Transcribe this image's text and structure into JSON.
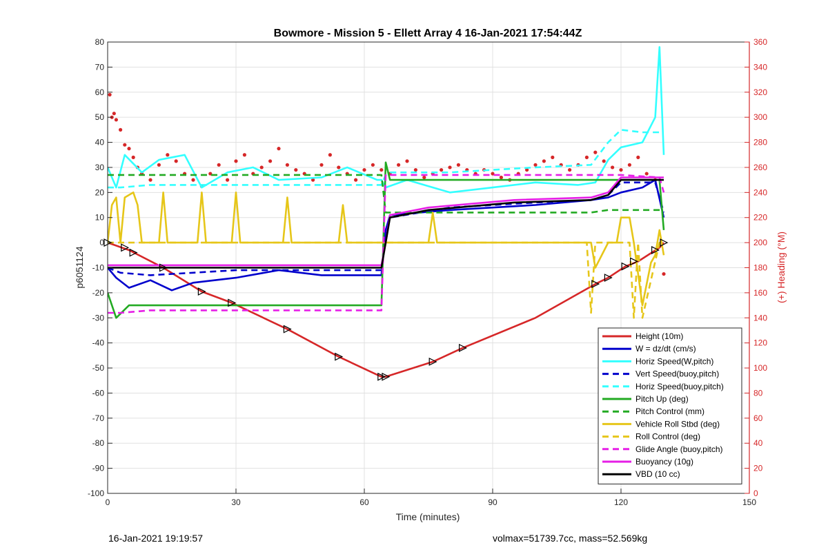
{
  "chart_data": {
    "type": "line",
    "title": "Bowmore - Mission 5 - Ellett Array 4 16-Jan-2021 17:54:44Z",
    "xlabel": "Time (minutes)",
    "ylabel": "p6051124",
    "y2label": "(+) Heading (°M)",
    "xlim": [
      0,
      150
    ],
    "ylim": [
      -100,
      80
    ],
    "y2lim": [
      0,
      360
    ],
    "xticks": [
      0,
      30,
      60,
      90,
      120,
      150
    ],
    "yticks": [
      80,
      70,
      60,
      50,
      40,
      30,
      20,
      10,
      0,
      -10,
      -20,
      -30,
      -40,
      -50,
      -60,
      -70,
      -80,
      -90,
      -100
    ],
    "y2ticks": [
      360,
      340,
      320,
      300,
      280,
      260,
      240,
      220,
      200,
      180,
      160,
      140,
      120,
      100,
      80,
      60,
      40,
      20,
      0
    ],
    "grid": true,
    "legend_position": "bottom-right",
    "series": [
      {
        "name": "Height (10m)",
        "color": "#d62728",
        "style": "solid",
        "x": [
          0,
          5,
          13,
          22,
          29,
          42,
          54,
          64,
          65,
          76,
          83,
          100,
          114,
          117,
          121,
          124,
          129,
          130
        ],
        "y": [
          0,
          -3,
          -10,
          -19.5,
          -24,
          -34.5,
          -45.5,
          -53.5,
          -53.5,
          -47.5,
          -42,
          -30,
          -16.5,
          -14,
          -9.5,
          -7.5,
          -2,
          0
        ]
      },
      {
        "name": "W = dz/dt (cm/s)",
        "color": "#0000cc",
        "style": "solid",
        "x": [
          0,
          2,
          5,
          10,
          15,
          20,
          30,
          40,
          50,
          63,
          64,
          65,
          66,
          80,
          100,
          113,
          117,
          120,
          125,
          128,
          130
        ],
        "y": [
          -10,
          -14,
          -18,
          -15,
          -19,
          -16,
          -14,
          -11,
          -13,
          -13,
          -13,
          5,
          11,
          13,
          15,
          17,
          18,
          20,
          22,
          25,
          10
        ]
      },
      {
        "name": "Horiz Speed(W,pitch)",
        "color": "#33ffff",
        "style": "solid",
        "x": [
          0,
          2,
          4,
          8,
          12,
          18,
          22,
          28,
          34,
          40,
          50,
          56,
          63,
          64,
          65,
          70,
          80,
          90,
          100,
          110,
          114,
          117,
          120,
          125,
          128,
          129,
          130
        ],
        "y": [
          30,
          22,
          35,
          28,
          33,
          35,
          22,
          28,
          30,
          25,
          26,
          30,
          25,
          25,
          22,
          25,
          20,
          22,
          24,
          23,
          24,
          33,
          38,
          40,
          50,
          78,
          35
        ]
      },
      {
        "name": "Vert Speed(buoy,pitch)",
        "color": "#0000cc",
        "style": "dashed",
        "x": [
          0,
          3,
          10,
          20,
          30,
          40,
          50,
          63,
          64,
          65,
          66,
          80,
          100,
          113,
          117,
          120,
          128,
          130
        ],
        "y": [
          -10,
          -12,
          -13,
          -12,
          -11,
          -11,
          -11,
          -11,
          -11,
          5,
          10,
          14,
          16,
          17,
          19,
          24,
          24,
          12
        ]
      },
      {
        "name": "Horiz Speed(buoy,pitch)",
        "color": "#33ffff",
        "style": "dashed",
        "x": [
          0,
          3,
          10,
          30,
          50,
          63,
          64,
          65,
          66,
          80,
          100,
          113,
          117,
          120,
          125,
          129
        ],
        "y": [
          22,
          22,
          23,
          23,
          23,
          23,
          23,
          27,
          28,
          28,
          30,
          31,
          40,
          45,
          44,
          44
        ]
      },
      {
        "name": "Pitch Up (deg)",
        "color": "#22aa22",
        "style": "solid",
        "x": [
          0,
          2,
          5,
          10,
          30,
          50,
          63,
          64,
          65,
          66,
          80,
          100,
          113,
          117,
          120,
          129,
          130
        ],
        "y": [
          -20,
          -30,
          -25,
          -25,
          -25,
          -25,
          -25,
          -25,
          32,
          25,
          25,
          25,
          25,
          25,
          25,
          25,
          5
        ]
      },
      {
        "name": "Pitch Control (mm)",
        "color": "#22aa22",
        "style": "dashed",
        "x": [
          0,
          64,
          65,
          66,
          80,
          100,
          113,
          117,
          120,
          130
        ],
        "y": [
          27,
          27,
          12,
          12,
          12,
          12,
          12,
          13,
          13,
          13
        ]
      },
      {
        "name": "Vehicle Roll Stbd (deg)",
        "color": "#e6c619",
        "style": "solid",
        "x": [
          0,
          1,
          2,
          3,
          4,
          6,
          7,
          8,
          12,
          13,
          14,
          21,
          22,
          23,
          29,
          30,
          31,
          41,
          42,
          43,
          54,
          55,
          56,
          64,
          65,
          75,
          76,
          77,
          90,
          113,
          114,
          117,
          119,
          120,
          122,
          123,
          125,
          127,
          128,
          129,
          130
        ],
        "y": [
          0,
          15,
          18,
          0,
          18,
          20,
          15,
          0,
          0,
          20,
          0,
          0,
          20,
          0,
          0,
          20,
          0,
          0,
          18,
          0,
          0,
          15,
          0,
          0,
          0,
          0,
          12,
          0,
          0,
          0,
          -10,
          0,
          0,
          10,
          10,
          0,
          -25,
          -8,
          -5,
          5,
          -5
        ]
      },
      {
        "name": "Roll Control (deg)",
        "color": "#e6c619",
        "style": "dashed",
        "x": [
          0,
          64,
          65,
          80,
          110,
          112,
          113,
          114,
          115,
          120,
          122,
          123,
          124,
          125,
          129,
          130
        ],
        "y": [
          0,
          0,
          0,
          0,
          0,
          0,
          -28,
          0,
          0,
          0,
          0,
          -30,
          0,
          -30,
          0,
          0
        ]
      },
      {
        "name": "Glide Angle (buoy,pitch)",
        "color": "#e61ee6",
        "style": "dashed",
        "x": [
          0,
          3,
          10,
          30,
          50,
          63,
          64,
          65,
          66,
          80,
          100,
          113,
          117,
          120,
          129,
          130
        ],
        "y": [
          -28,
          -28,
          -27,
          -27,
          -27,
          -27,
          -27,
          27,
          27,
          27,
          27,
          27,
          27,
          27,
          26,
          20
        ]
      },
      {
        "name": "Buoyancy (10g)",
        "color": "#e61ee6",
        "style": "solid",
        "x": [
          0,
          64,
          65,
          66,
          75,
          95,
          113,
          117,
          120,
          130
        ],
        "y": [
          -9,
          -9,
          0,
          11,
          14,
          17,
          18,
          20,
          26,
          26
        ]
      },
      {
        "name": "VBD (10 cc)",
        "color": "#000000",
        "style": "solid",
        "x": [
          0,
          64,
          65,
          66,
          75,
          95,
          113,
          117,
          120,
          130
        ],
        "y": [
          -10,
          -10,
          0,
          10,
          13,
          16,
          17,
          19,
          25,
          25
        ]
      }
    ],
    "heading_scatter": {
      "name": "(+) Heading (°M)",
      "color": "#d62728",
      "x": [
        0.5,
        1,
        1.5,
        2,
        3,
        4,
        5,
        6,
        7,
        8,
        10,
        12,
        14,
        16,
        18,
        20,
        22,
        24,
        26,
        28,
        30,
        32,
        34,
        36,
        38,
        40,
        42,
        44,
        46,
        48,
        50,
        52,
        54,
        56,
        58,
        60,
        62,
        64,
        66,
        68,
        70,
        72,
        74,
        76,
        78,
        80,
        82,
        84,
        86,
        88,
        90,
        92,
        94,
        96,
        98,
        100,
        102,
        104,
        106,
        108,
        110,
        112,
        114,
        116,
        118,
        120,
        122,
        124,
        126,
        128,
        130
      ],
      "y": [
        318,
        300,
        303,
        298,
        290,
        278,
        275,
        268,
        260,
        255,
        250,
        262,
        270,
        265,
        255,
        250,
        245,
        255,
        262,
        250,
        265,
        270,
        255,
        260,
        265,
        275,
        262,
        258,
        255,
        250,
        262,
        270,
        260,
        255,
        250,
        258,
        262,
        258,
        255,
        262,
        265,
        258,
        252,
        255,
        258,
        260,
        262,
        258,
        255,
        258,
        255,
        252,
        250,
        255,
        258,
        262,
        265,
        268,
        262,
        258,
        262,
        268,
        272,
        265,
        260,
        258,
        262,
        268,
        255,
        250,
        175
      ]
    },
    "triangle_markers": {
      "x": [
        0,
        4,
        6,
        13,
        22,
        29,
        42,
        54,
        64,
        65,
        76,
        83,
        114,
        117,
        121,
        123,
        128,
        130
      ],
      "y": [
        0,
        -2,
        -4,
        -10,
        -19.5,
        -24,
        -34.5,
        -45.5,
        -53.5,
        -53.5,
        -47.5,
        -42,
        -16.5,
        -14,
        -9.5,
        -7.5,
        -3,
        0
      ]
    }
  },
  "footer": {
    "timestamp": "16-Jan-2021 19:19:57",
    "stats": "volmax=51739.7cc, mass=52.569kg"
  }
}
